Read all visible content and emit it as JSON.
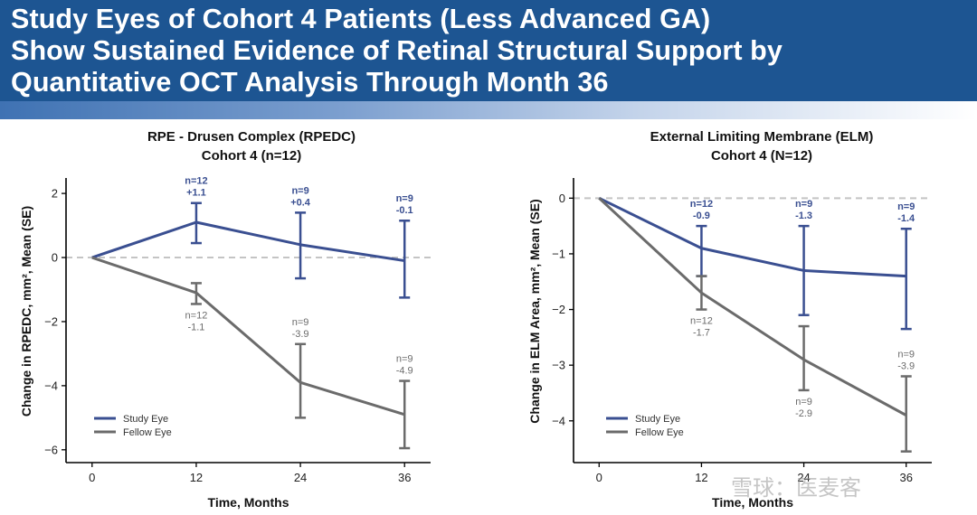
{
  "header": {
    "title_lines": [
      "Study Eyes of Cohort 4 Patients (Less Advanced GA)",
      "Show Sustained Evidence of Retinal Structural Support by",
      "Quantitative OCT Analysis Through Month 36"
    ]
  },
  "colors": {
    "study": "#3a4f91",
    "fellow": "#6b6b6b",
    "header_bg": "#1d5592"
  },
  "watermark": "雪球：医麦客",
  "chart_data": [
    {
      "type": "line",
      "title": [
        "RPE - Drusen Complex (RPEDC)",
        "Cohort 4 (n=12)"
      ],
      "xlabel": "Time, Months",
      "ylabel": "Change in RPEDC, mm², Mean (SE)",
      "x": [
        0,
        12,
        24,
        36
      ],
      "xlim": [
        -3,
        39
      ],
      "ylim": [
        -6.4,
        2.2
      ],
      "yticks": [
        2,
        0,
        -2,
        -4,
        -6
      ],
      "ytick_labels": [
        "2",
        "0",
        "−2",
        "−4",
        "−6"
      ],
      "reference_line": 0,
      "legend": {
        "position": "bottom-left",
        "entries": [
          "Study Eye",
          "Fellow Eye"
        ]
      },
      "series": [
        {
          "name": "Study Eye",
          "color_key": "study",
          "values": [
            0,
            1.1,
            0.4,
            -0.1
          ],
          "error_low": [
            null,
            0.45,
            -0.65,
            -1.25
          ],
          "error_high": [
            null,
            1.7,
            1.4,
            1.15
          ],
          "labels": [
            null,
            [
              "n=12",
              "+1.1"
            ],
            [
              "n=9",
              "+0.4"
            ],
            [
              "n=9",
              "-0.1"
            ]
          ]
        },
        {
          "name": "Fellow Eye",
          "color_key": "fellow",
          "values": [
            0,
            -1.1,
            -3.9,
            -4.9
          ],
          "error_low": [
            null,
            -1.45,
            -5.0,
            -5.95
          ],
          "error_high": [
            null,
            -0.8,
            -2.7,
            -3.85
          ],
          "labels": [
            null,
            [
              "n=12",
              "-1.1"
            ],
            [
              "n=9",
              "-3.9"
            ],
            [
              "n=9",
              "-4.9"
            ]
          ]
        }
      ]
    },
    {
      "type": "line",
      "title": [
        "External Limiting Membrane (ELM)",
        "Cohort 4 (N=12)"
      ],
      "xlabel": "Time, Months",
      "ylabel": "Change in ELM Area, mm², Mean (SE)",
      "x": [
        0,
        12,
        24,
        36
      ],
      "xlim": [
        -3,
        39
      ],
      "ylim": [
        -4.75,
        0.2
      ],
      "yticks": [
        0,
        -1,
        -2,
        -3,
        -4
      ],
      "ytick_labels": [
        "0",
        "−1",
        "−2",
        "−3",
        "−4"
      ],
      "reference_line": 0,
      "legend": {
        "position": "bottom-left",
        "entries": [
          "Study Eye",
          "Fellow Eye"
        ]
      },
      "series": [
        {
          "name": "Study Eye",
          "color_key": "study",
          "values": [
            0,
            -0.9,
            -1.3,
            -1.4
          ],
          "error_low": [
            null,
            -1.4,
            -2.1,
            -2.35
          ],
          "error_high": [
            null,
            -0.5,
            -0.5,
            -0.55
          ],
          "labels": [
            null,
            [
              "n=12",
              "-0.9"
            ],
            [
              "n=9",
              "-1.3"
            ],
            [
              "n=9",
              "-1.4"
            ]
          ]
        },
        {
          "name": "Fellow Eye",
          "color_key": "fellow",
          "values": [
            0,
            -1.7,
            -2.9,
            -3.9
          ],
          "error_low": [
            null,
            -2.0,
            -3.45,
            -4.55
          ],
          "error_high": [
            null,
            -1.4,
            -2.3,
            -3.2
          ],
          "labels": [
            null,
            [
              "n=12",
              "-1.7"
            ],
            [
              "n=9",
              "-2.9"
            ],
            [
              "n=9",
              "-3.9"
            ]
          ]
        }
      ]
    }
  ]
}
